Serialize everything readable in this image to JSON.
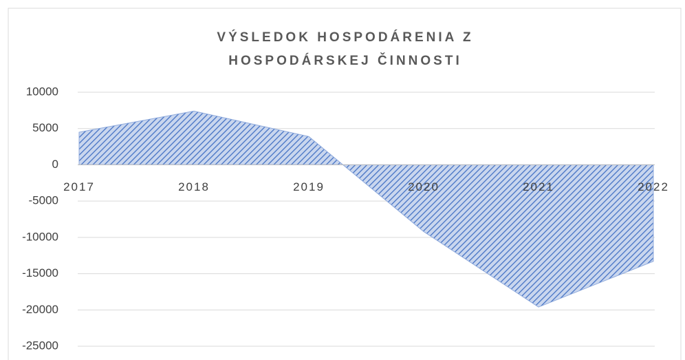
{
  "chart_data": {
    "type": "area",
    "title": "VÝSLEDOK HOSPODÁRENIA Z HOSPODÁRSKEJ ČINNOSTI",
    "categories": [
      "2017",
      "2018",
      "2019",
      "2020",
      "2021",
      "2022"
    ],
    "values": [
      4500,
      7400,
      3900,
      -9200,
      -19600,
      -13300
    ],
    "color": "#4472c4",
    "ylim": [
      -25000,
      10000
    ],
    "yticks": [
      -25000,
      -20000,
      -15000,
      -10000,
      -5000,
      0,
      5000,
      10000
    ],
    "grid": true
  }
}
